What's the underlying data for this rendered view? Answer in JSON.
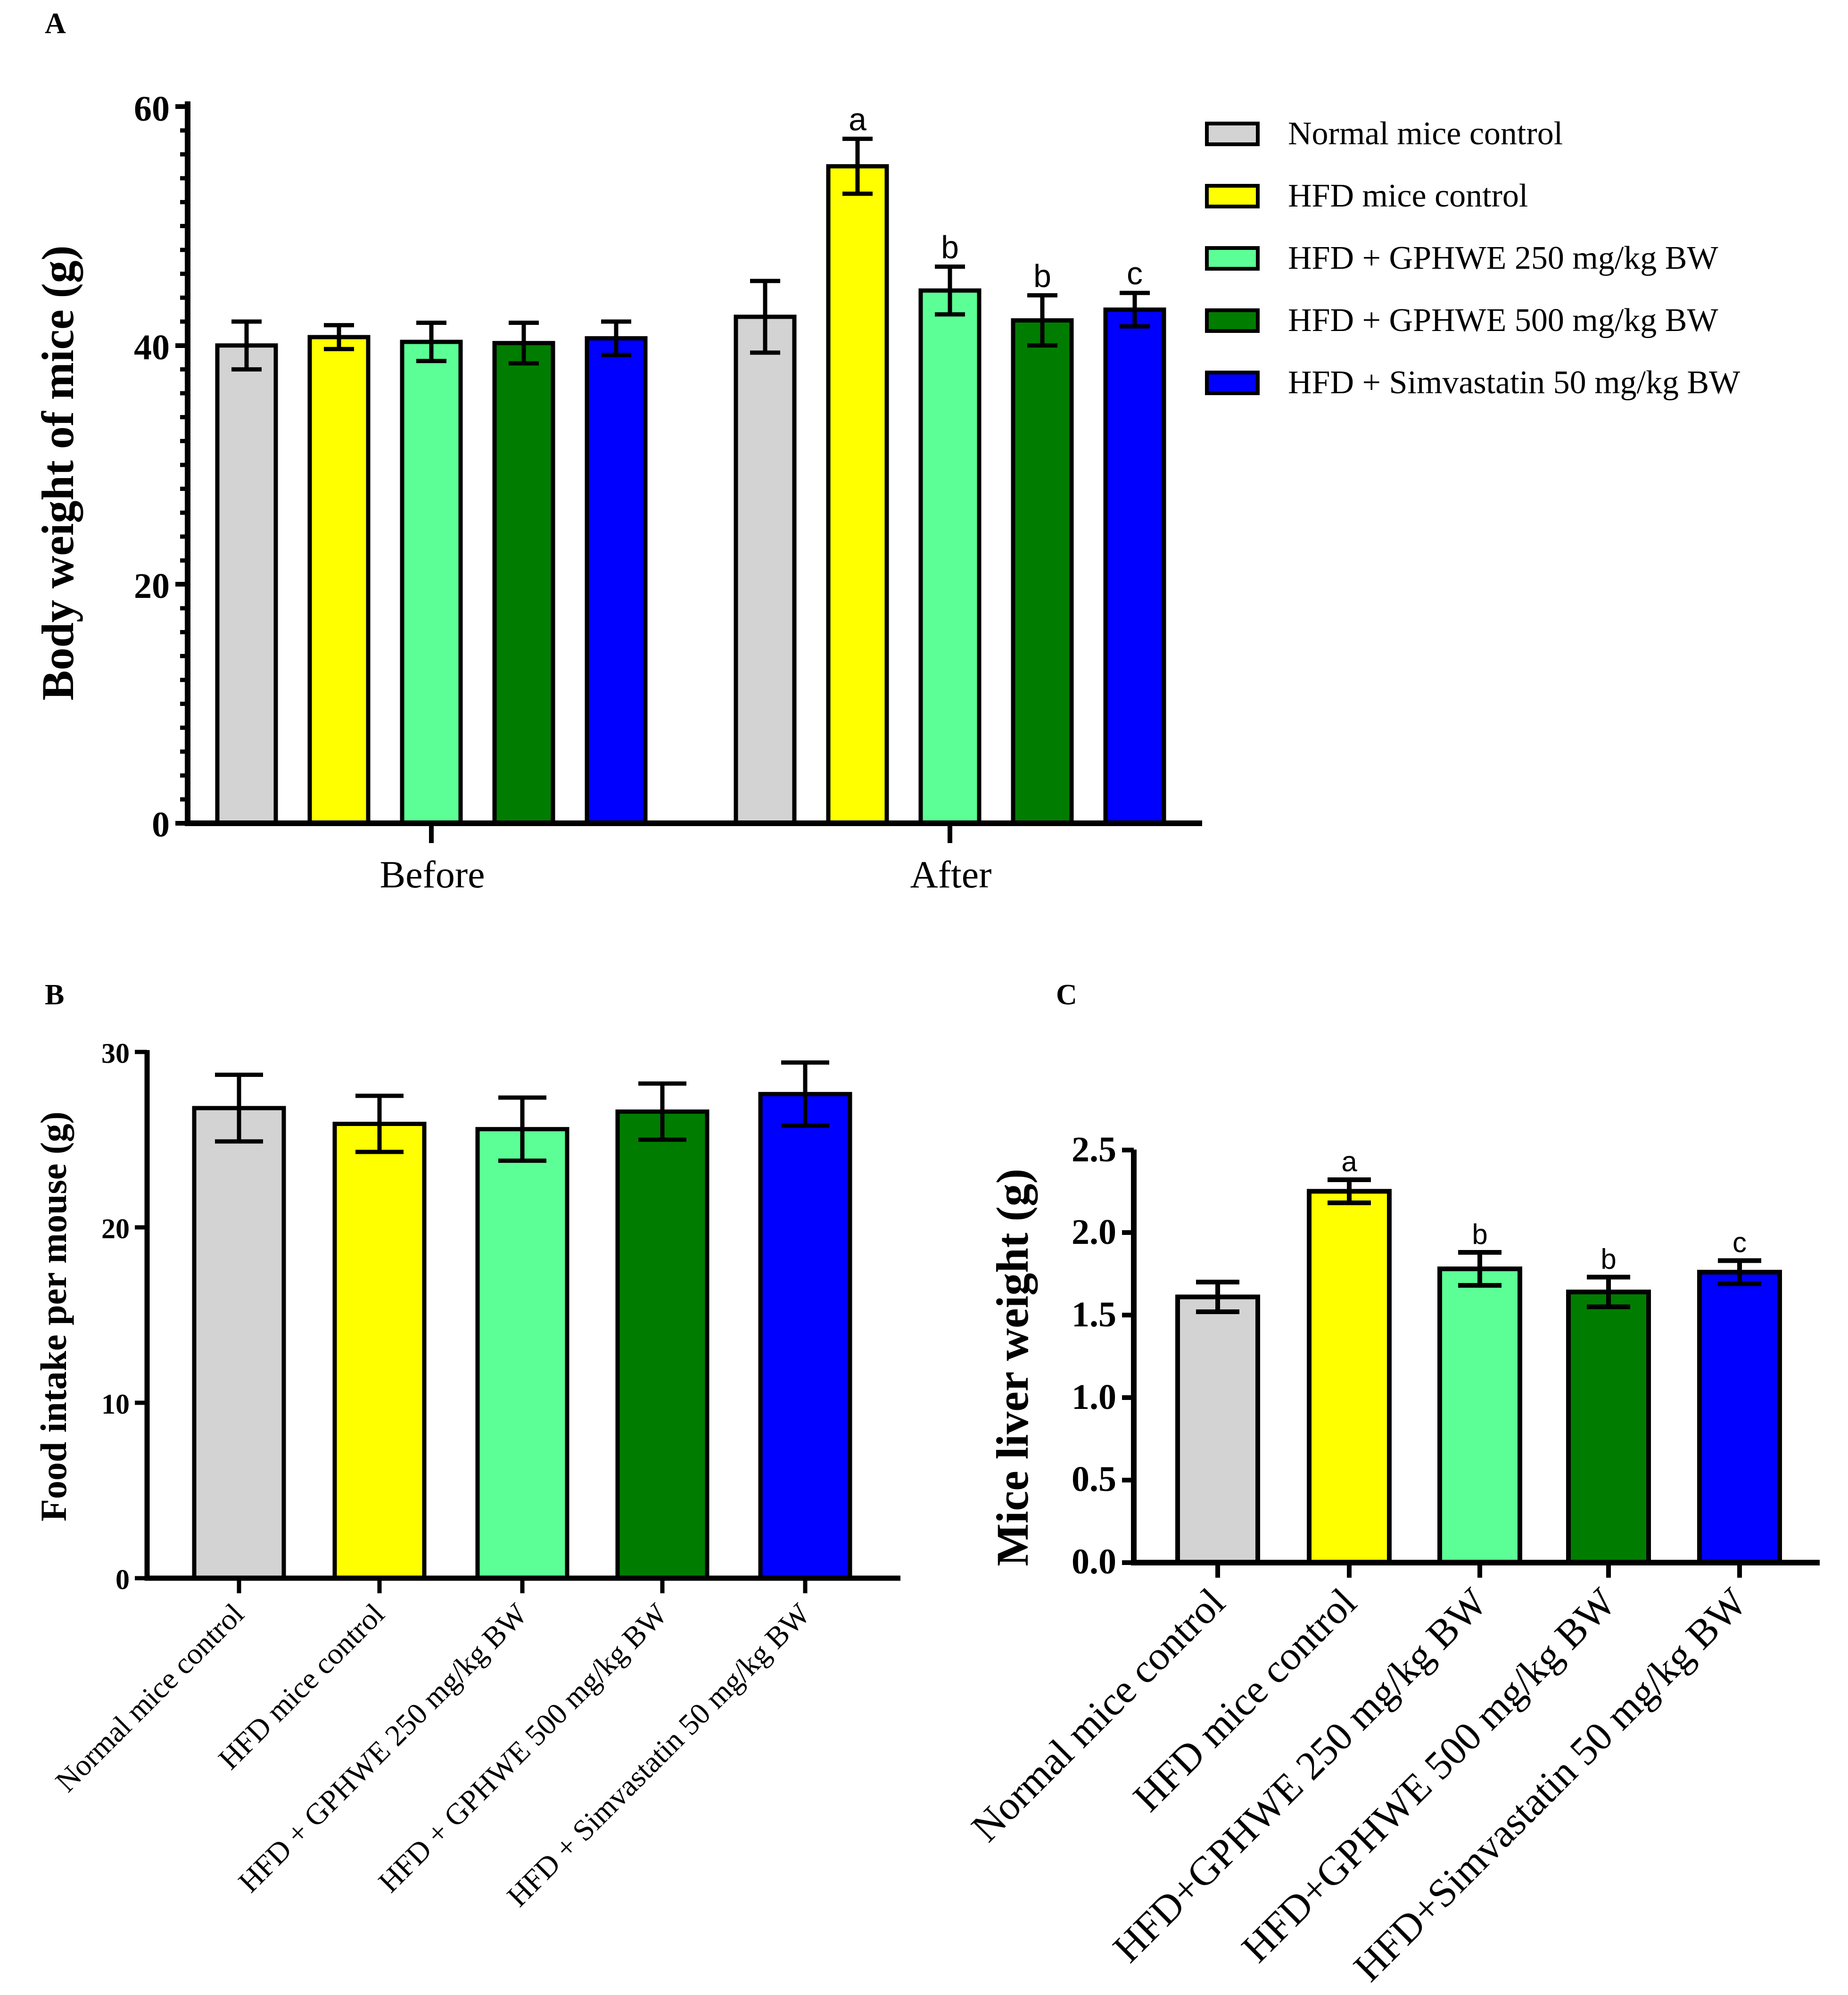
{
  "colors": {
    "normal": "#d3d3d3",
    "hfd": "#ffff00",
    "gphwe250": "#5cff95",
    "gphwe500": "#007d00",
    "simvastatin": "#0000ff"
  },
  "chart_data": [
    {
      "panel": "A",
      "type": "bar",
      "ylabel": "Body weight of mice (g)",
      "xlabel": "",
      "ylim": [
        0,
        60
      ],
      "yticks": [
        "0",
        "20",
        "40",
        "60"
      ],
      "categories": [
        "Before",
        "After"
      ],
      "legend": {
        "position": "top-right",
        "entries": [
          "Normal mice control",
          "HFD mice control",
          "HFD + GPHWE 250 mg/kg BW",
          "HFD + GPHWE 500 mg/kg BW",
          "HFD + Simvastatin 50 mg/kg BW"
        ]
      },
      "series": [
        {
          "name": "Normal mice control",
          "color": "#d3d3d3",
          "values": [
            40.0,
            42.4
          ],
          "errors": [
            2.0,
            3.0
          ],
          "labels": [
            "",
            ""
          ]
        },
        {
          "name": "HFD mice control",
          "color": "#ffff00",
          "values": [
            40.7,
            55.0
          ],
          "errors": [
            1.0,
            2.3
          ],
          "labels": [
            "",
            "a"
          ]
        },
        {
          "name": "HFD + GPHWE 250 mg/kg BW",
          "color": "#5cff95",
          "values": [
            40.3,
            44.6
          ],
          "errors": [
            1.6,
            2.0
          ],
          "labels": [
            "",
            "b"
          ]
        },
        {
          "name": "HFD + GPHWE 500 mg/kg BW",
          "color": "#007d00",
          "values": [
            40.2,
            42.1
          ],
          "errors": [
            1.7,
            2.1
          ],
          "labels": [
            "",
            "b"
          ]
        },
        {
          "name": "HFD + Simvastatin 50 mg/kg BW",
          "color": "#0000ff",
          "values": [
            40.6,
            43.0
          ],
          "errors": [
            1.4,
            1.4
          ],
          "labels": [
            "",
            "c"
          ]
        }
      ]
    },
    {
      "panel": "B",
      "type": "bar",
      "ylabel": "Food intake per mouse (g)",
      "xlabel": "",
      "ylim": [
        0,
        30
      ],
      "yticks": [
        "0",
        "10",
        "20",
        "30"
      ],
      "categories": [
        "Normal mice control",
        "HFD mice control",
        "HFD + GPHWE 250 mg/kg BW",
        "HFD + GPHWE 500 mg/kg BW",
        "HFD + Simvastatin 50 mg/kg BW"
      ],
      "values": [
        26.8,
        25.9,
        25.6,
        26.6,
        27.6
      ],
      "errors": [
        1.9,
        1.6,
        1.8,
        1.6,
        1.8
      ],
      "colors": [
        "#d3d3d3",
        "#ffff00",
        "#5cff95",
        "#007d00",
        "#0000ff"
      ]
    },
    {
      "panel": "C",
      "type": "bar",
      "ylabel": "Mice liver weight (g)",
      "xlabel": "",
      "ylim": [
        0,
        2.5
      ],
      "yticks": [
        "0.0",
        "0.5",
        "1.0",
        "1.5",
        "2.0",
        "2.5"
      ],
      "categories": [
        "Normal mice control",
        "HFD mice control",
        "HFD+GPHWE 250 mg/kg BW",
        "HFD+GPHWE 500 mg/kg BW",
        "HFD+Simvastatin 50 mg/kg BW"
      ],
      "values": [
        1.61,
        2.25,
        1.78,
        1.64,
        1.76
      ],
      "errors": [
        0.09,
        0.07,
        0.1,
        0.09,
        0.07
      ],
      "labels": [
        "",
        "a",
        "b",
        "b",
        "c"
      ],
      "colors": [
        "#d3d3d3",
        "#ffff00",
        "#5cff95",
        "#007d00",
        "#0000ff"
      ]
    }
  ]
}
